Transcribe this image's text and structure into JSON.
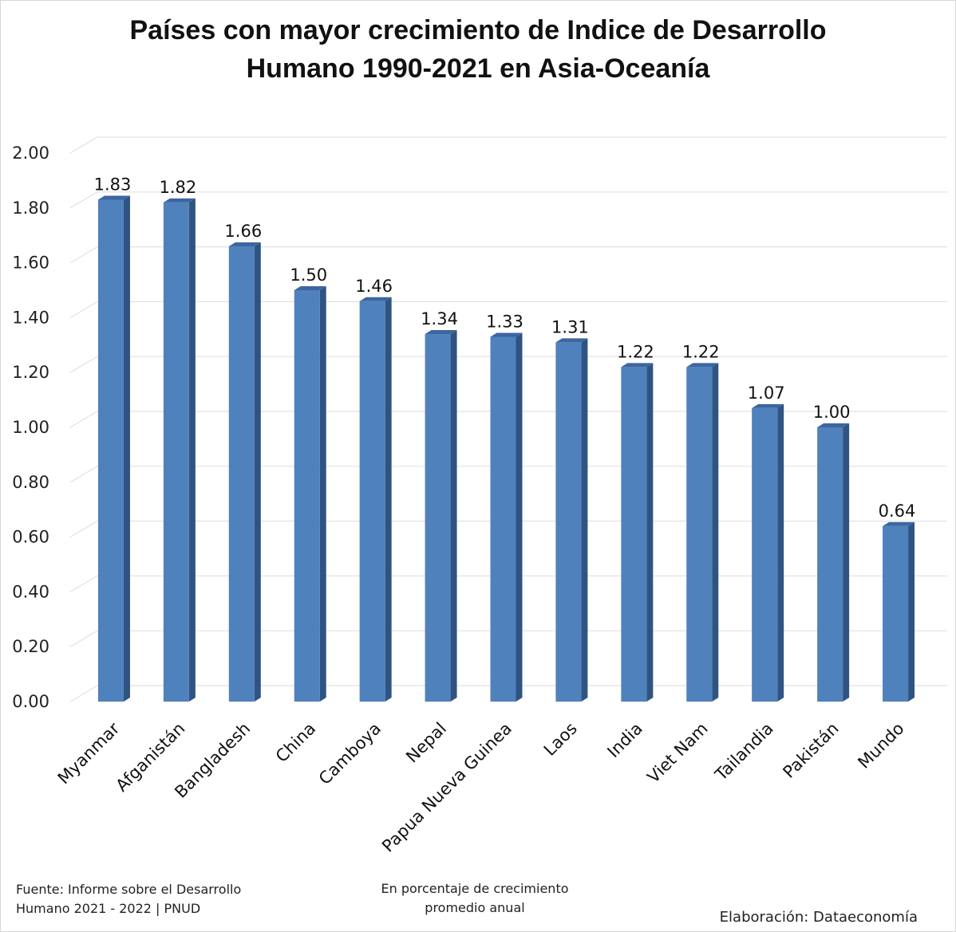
{
  "title_line1": "Países con mayor crecimiento de Indice de Desarrollo",
  "title_line2": "Humano 1990-2021 en Asia-Oceanía",
  "source_line1": "Fuente: Informe sobre el Desarrollo",
  "source_line2": "Humano 2021 - 2022 | PNUD",
  "unit_line1": "En porcentaje de crecimiento",
  "unit_line2": "promedio anual",
  "credit": "Elaboración: Dataeconomía",
  "colors": {
    "bar_front": "#4f81bd",
    "bar_side": "#2f5482",
    "bar_top": "#3c66a0",
    "grid": "#e2e2e2"
  },
  "chart_data": {
    "type": "bar",
    "categories": [
      "Myanmar",
      "Afganistán",
      "Bangladesh",
      "China",
      "Camboya",
      "Nepal",
      "Papua Nueva Guinea",
      "Laos",
      "India",
      "Viet Nam",
      "Tailandia",
      "Pakistán",
      "Mundo"
    ],
    "values": [
      1.83,
      1.82,
      1.66,
      1.5,
      1.46,
      1.34,
      1.33,
      1.31,
      1.22,
      1.22,
      1.07,
      1.0,
      0.64
    ],
    "data_labels": [
      "1.83",
      "1.82",
      "1.66",
      "1.50",
      "1.46",
      "1.34",
      "1.33",
      "1.31",
      "1.22",
      "1.22",
      "1.07",
      "1.00",
      "0.64"
    ],
    "y_ticks": [
      "0.00",
      "0.20",
      "0.40",
      "0.60",
      "0.80",
      "1.00",
      "1.20",
      "1.40",
      "1.60",
      "1.80",
      "2.00"
    ],
    "ylim": [
      0,
      2.0
    ],
    "grid": true,
    "style": "3d-column"
  }
}
